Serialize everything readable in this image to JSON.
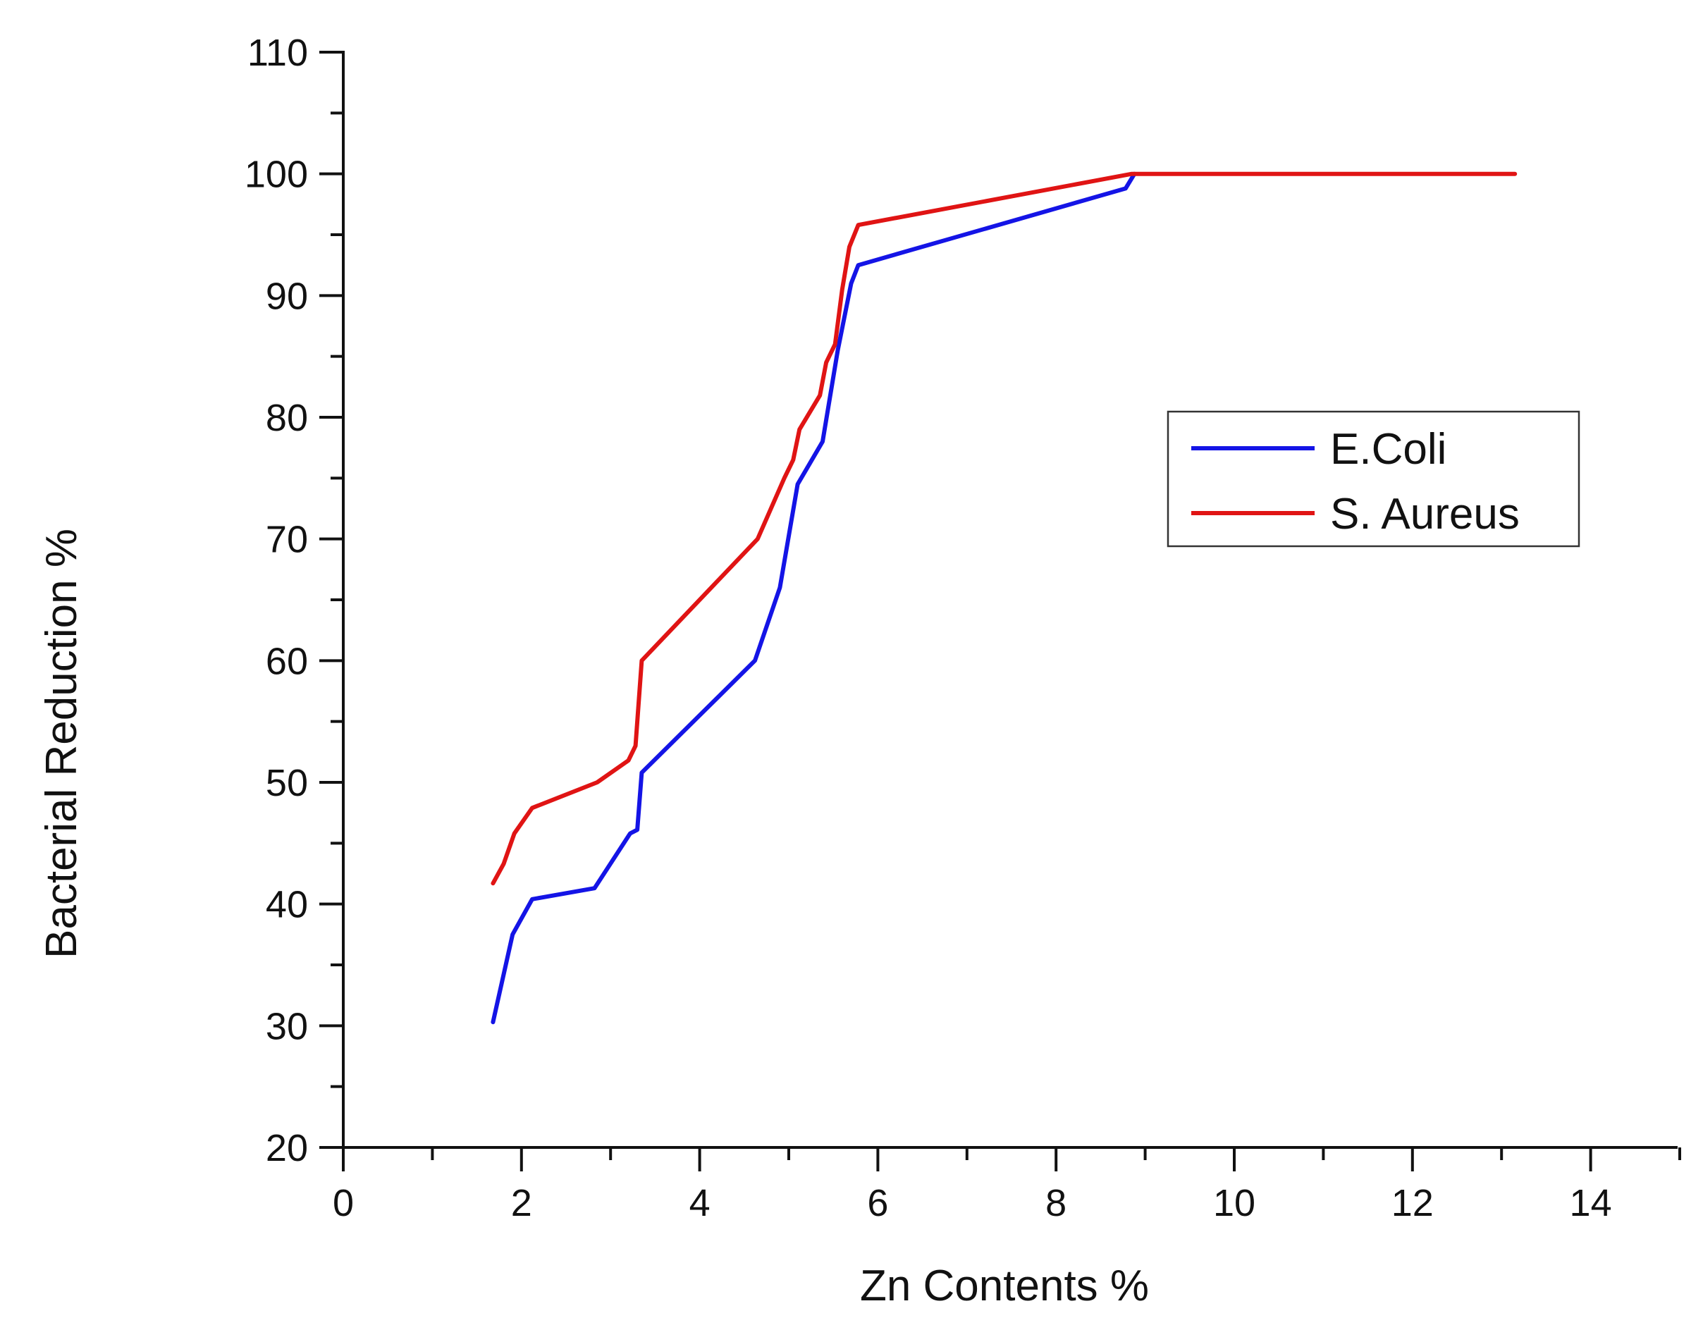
{
  "chart_data": {
    "type": "line",
    "title": "",
    "xlabel": "Zn Contents %",
    "ylabel": "Bacterial Reduction %",
    "xlim": [
      0,
      15
    ],
    "ylim": [
      20,
      110
    ],
    "x_major_ticks": [
      0,
      2,
      4,
      6,
      8,
      10,
      12,
      14
    ],
    "x_tick_labels": [
      "0",
      "2",
      "4",
      "6",
      "8",
      "10",
      "12",
      "14"
    ],
    "y_major_ticks": [
      20,
      30,
      40,
      50,
      60,
      70,
      80,
      90,
      100,
      110
    ],
    "y_tick_labels": [
      "20",
      "30",
      "40",
      "50",
      "60",
      "70",
      "80",
      "90",
      "100",
      "110"
    ],
    "grid": false,
    "legend_position": "right",
    "series": [
      {
        "name": "E.Coli",
        "color": "#1414e6",
        "x": [
          1.68,
          1.9,
          2.12,
          2.82,
          3.22,
          3.3,
          3.35,
          4.62,
          4.9,
          5.1,
          5.38,
          5.55,
          5.7,
          5.78,
          8.78,
          8.88
        ],
        "y": [
          30.3,
          37.5,
          40.4,
          41.3,
          45.8,
          46.1,
          50.8,
          60.0,
          66.0,
          74.5,
          78.0,
          85.5,
          91.0,
          92.5,
          98.8,
          100.0
        ]
      },
      {
        "name": "S. Aureus",
        "color": "#e01414",
        "x": [
          1.68,
          1.8,
          1.92,
          2.12,
          2.85,
          3.2,
          3.28,
          3.35,
          4.65,
          4.95,
          5.05,
          5.12,
          5.35,
          5.42,
          5.52,
          5.6,
          5.68,
          5.78,
          8.85,
          13.15
        ],
        "y": [
          41.7,
          43.3,
          45.8,
          47.9,
          50.0,
          51.8,
          53.0,
          60.0,
          70.0,
          75.0,
          76.5,
          79.0,
          81.8,
          84.5,
          86.0,
          90.5,
          94.0,
          95.8,
          100.0,
          100.0
        ]
      }
    ]
  }
}
